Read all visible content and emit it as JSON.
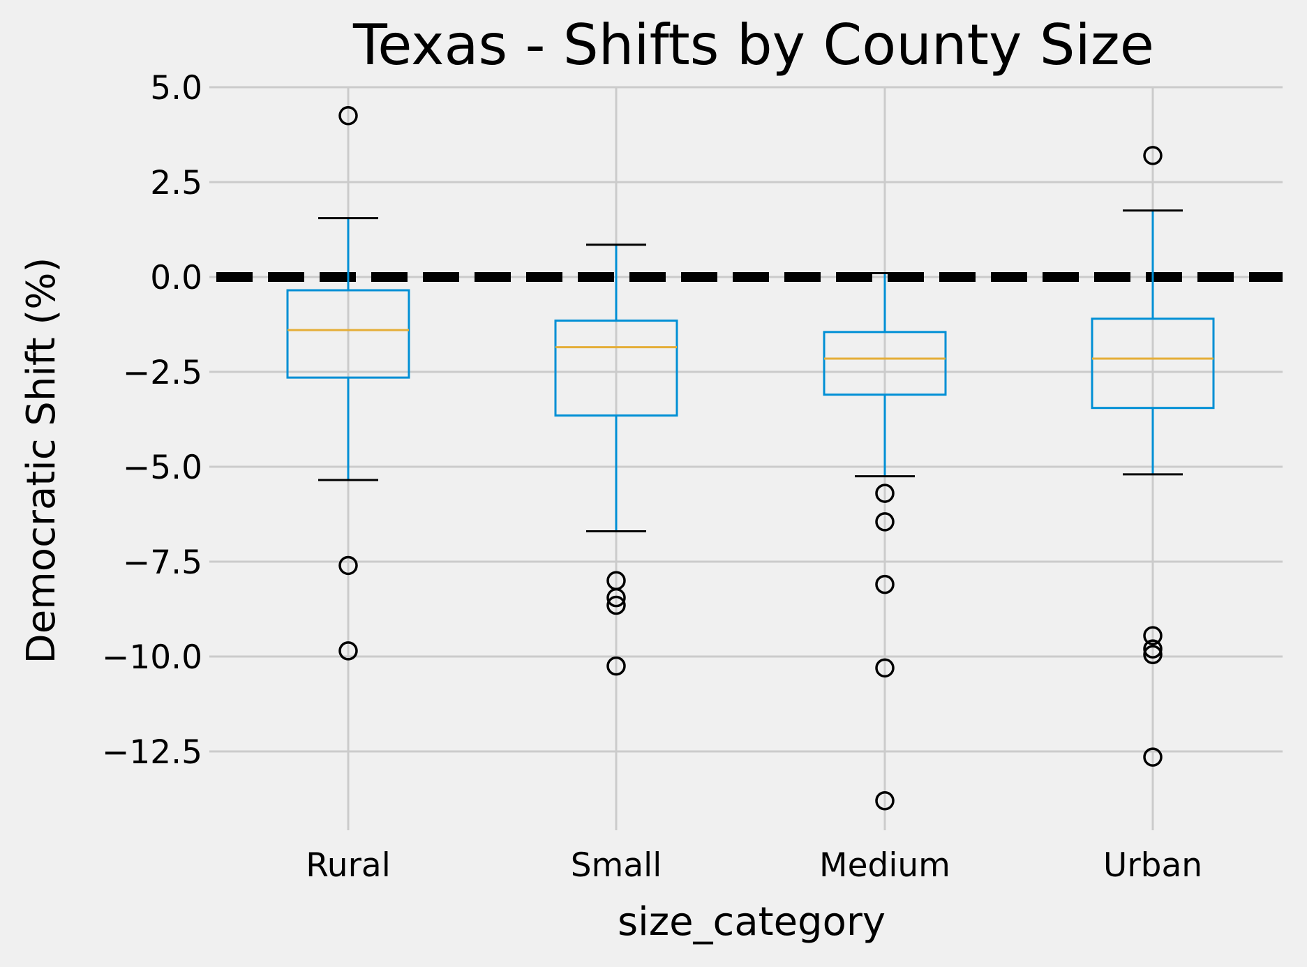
{
  "chart_data": {
    "type": "box",
    "title": "Texas - Shifts by County Size",
    "xlabel": "size_category",
    "ylabel": "Democratic Shift (%)",
    "ylim": [
      -14.4,
      5.0
    ],
    "yticks": [
      5.0,
      2.5,
      0.0,
      -2.5,
      -5.0,
      -7.5,
      -10.0,
      -12.5
    ],
    "ytick_labels": [
      "5.0",
      "2.5",
      "0.0",
      "−2.5",
      "−5.0",
      "−7.5",
      "−10.0",
      "−12.5"
    ],
    "grid": true,
    "reference_line": {
      "y": 0.0,
      "style": "dashed",
      "color": "#000000"
    },
    "colors": {
      "box": "#008fd5",
      "median": "#e5ae38",
      "whisker": "#008fd5",
      "cap": "#000000",
      "outlier": "#000000",
      "background": "#f0f0f0",
      "grid": "#cbcbcb"
    },
    "categories": [
      "Rural",
      "Small",
      "Medium",
      "Urban"
    ],
    "boxes": [
      {
        "category": "Rural",
        "whisker_low": -5.35,
        "q1": -2.65,
        "median": -1.4,
        "q3": -0.35,
        "whisker_high": 1.55,
        "outliers": [
          4.25,
          -7.6,
          -9.85
        ]
      },
      {
        "category": "Small",
        "whisker_low": -6.7,
        "q1": -3.65,
        "median": -1.85,
        "q3": -1.15,
        "whisker_high": 0.85,
        "outliers": [
          -8.0,
          -8.45,
          -8.65,
          -10.25
        ]
      },
      {
        "category": "Medium",
        "whisker_low": -5.25,
        "q1": -3.1,
        "median": -2.15,
        "q3": -1.45,
        "whisker_high": 0.1,
        "outliers": [
          -5.7,
          -6.45,
          -8.1,
          -10.3,
          -13.8
        ]
      },
      {
        "category": "Urban",
        "whisker_low": -5.2,
        "q1": -3.45,
        "median": -2.15,
        "q3": -1.1,
        "whisker_high": 1.75,
        "outliers": [
          3.2,
          -9.45,
          -9.8,
          -9.95,
          -12.65
        ]
      }
    ]
  }
}
